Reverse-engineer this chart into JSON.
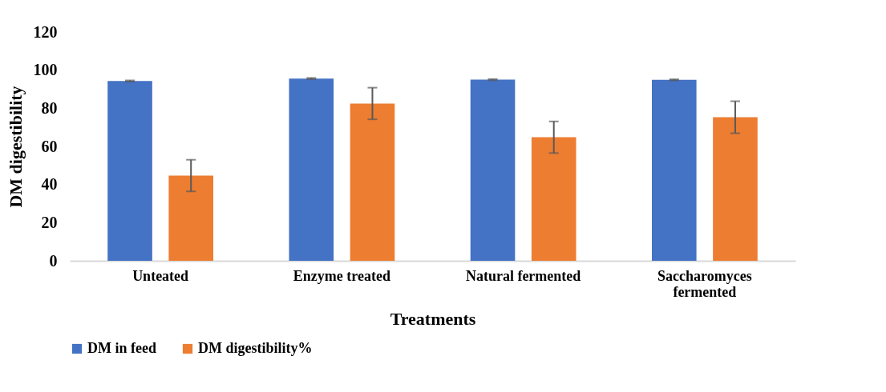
{
  "chart_data": {
    "type": "bar",
    "xlabel": "Treatments",
    "ylabel": "DM digestibility",
    "categories": [
      "Unteated",
      "Enzyme treated",
      "Natural fermented",
      "Saccharomyces fermented"
    ],
    "series": [
      {
        "name": "DM in feed",
        "color": "#4472c4",
        "values": [
          94.3,
          95.6,
          95.0,
          94.9
        ],
        "errors": [
          0.3,
          0.3,
          0.3,
          0.3
        ]
      },
      {
        "name": "DM digestibility%",
        "color": "#ed7d31",
        "values": [
          44.7,
          82.5,
          64.8,
          75.3
        ],
        "errors": [
          8.3,
          8.3,
          8.3,
          8.4
        ]
      }
    ],
    "ylim": [
      0,
      120
    ],
    "yticks": [
      0,
      20,
      40,
      60,
      80,
      100,
      120
    ],
    "legend": "bottom"
  }
}
